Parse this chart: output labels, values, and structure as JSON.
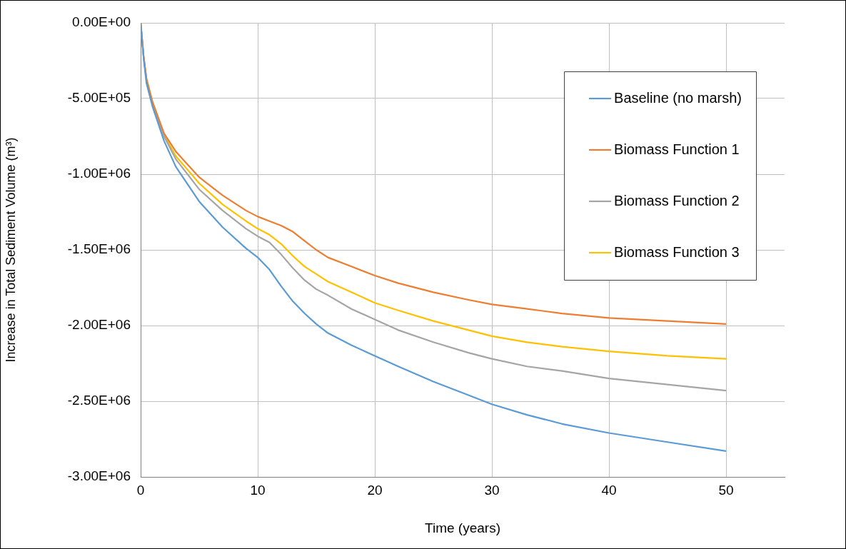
{
  "chart_data": {
    "type": "line",
    "xlabel": "Time (years)",
    "ylabel": "Increase in Total Sediment Volume (m³)",
    "x": [
      0,
      0.25,
      0.5,
      1,
      2,
      3,
      5,
      7,
      9,
      10,
      11,
      12,
      13,
      14,
      15,
      16,
      18,
      20,
      22,
      25,
      28,
      30,
      33,
      36,
      40,
      45,
      50
    ],
    "series": [
      {
        "name": "Baseline (no marsh)",
        "color": "#5b9bd5",
        "values": [
          0,
          -230000,
          -400000,
          -550000,
          -780000,
          -950000,
          -1180000,
          -1350000,
          -1490000,
          -1550000,
          -1630000,
          -1740000,
          -1840000,
          -1920000,
          -1990000,
          -2050000,
          -2130000,
          -2200000,
          -2270000,
          -2370000,
          -2460000,
          -2520000,
          -2590000,
          -2650000,
          -2710000,
          -2770000,
          -2830000
        ]
      },
      {
        "name": "Biomass Function 1",
        "color": "#ed7d31",
        "values": [
          0,
          -220000,
          -370000,
          -520000,
          -730000,
          -850000,
          -1020000,
          -1140000,
          -1240000,
          -1280000,
          -1310000,
          -1340000,
          -1380000,
          -1440000,
          -1500000,
          -1550000,
          -1610000,
          -1670000,
          -1720000,
          -1780000,
          -1830000,
          -1860000,
          -1890000,
          -1920000,
          -1950000,
          -1970000,
          -1990000
        ]
      },
      {
        "name": "Biomass Function 2",
        "color": "#a5a5a5",
        "values": [
          0,
          -220000,
          -380000,
          -530000,
          -750000,
          -900000,
          -1100000,
          -1240000,
          -1360000,
          -1410000,
          -1450000,
          -1530000,
          -1620000,
          -1700000,
          -1760000,
          -1800000,
          -1890000,
          -1960000,
          -2030000,
          -2110000,
          -2180000,
          -2220000,
          -2270000,
          -2300000,
          -2350000,
          -2390000,
          -2430000
        ]
      },
      {
        "name": "Biomass Function 3",
        "color": "#ffc000",
        "values": [
          0,
          -220000,
          -370000,
          -520000,
          -740000,
          -880000,
          -1060000,
          -1200000,
          -1310000,
          -1360000,
          -1400000,
          -1460000,
          -1540000,
          -1610000,
          -1660000,
          -1710000,
          -1780000,
          -1850000,
          -1900000,
          -1970000,
          -2030000,
          -2070000,
          -2110000,
          -2140000,
          -2170000,
          -2200000,
          -2220000
        ]
      }
    ],
    "xlim": [
      0,
      55
    ],
    "xticks": [
      0,
      10,
      20,
      30,
      40,
      50
    ],
    "ylim": [
      -3000000,
      0
    ],
    "yticks": [
      {
        "value": -3000000,
        "label": "-3.00E+06"
      },
      {
        "value": -2500000,
        "label": "-2.50E+06"
      },
      {
        "value": -2000000,
        "label": "-2.00E+06"
      },
      {
        "value": -1500000,
        "label": "-1.50E+06"
      },
      {
        "value": -1000000,
        "label": "-1.00E+06"
      },
      {
        "value": -500000,
        "label": "-5.00E+05"
      },
      {
        "value": 0,
        "label": "0.00E+00"
      }
    ],
    "grid": true,
    "legend": "top right",
    "marker": "none",
    "line_style": "solid"
  }
}
